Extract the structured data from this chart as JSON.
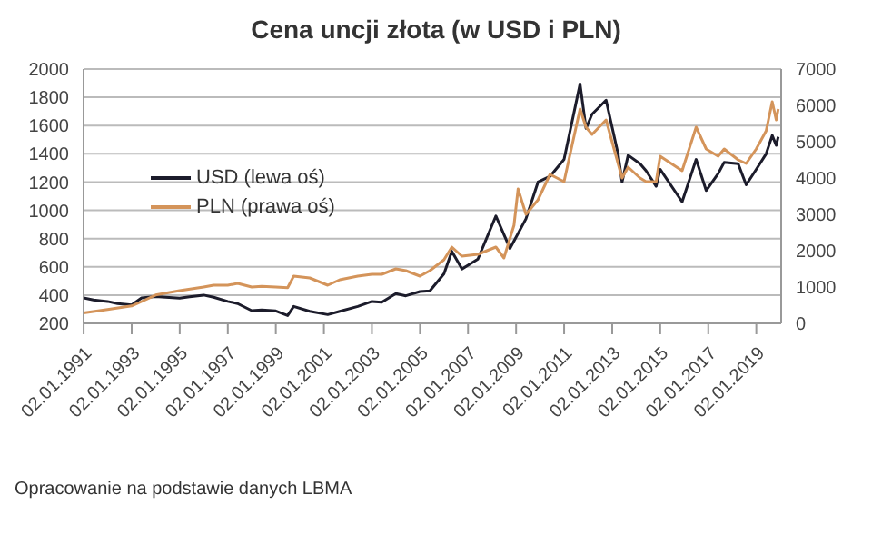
{
  "chart_data": {
    "type": "line",
    "title": "Cena uncji złota (w USD i PLN)",
    "annotations": [
      "Opracowanie na podstawie danych LBMA"
    ],
    "xlim": [
      "1991-01-01",
      "2020-01-15"
    ],
    "xticks": [
      {
        "value": "1991-01-02",
        "label": "02.01.1991"
      },
      {
        "value": "1993-01-02",
        "label": "02.01.1993"
      },
      {
        "value": "1995-01-02",
        "label": "02.01.1995"
      },
      {
        "value": "1997-01-02",
        "label": "02.01.1997"
      },
      {
        "value": "1999-01-02",
        "label": "02.01.1999"
      },
      {
        "value": "2001-01-02",
        "label": "02.01.2001"
      },
      {
        "value": "2003-01-02",
        "label": "02.01.2003"
      },
      {
        "value": "2005-01-02",
        "label": "02.01.2005"
      },
      {
        "value": "2007-01-02",
        "label": "02.01.2007"
      },
      {
        "value": "2009-01-02",
        "label": "02.01.2009"
      },
      {
        "value": "2011-01-02",
        "label": "02.01.2011"
      },
      {
        "value": "2013-01-02",
        "label": "02.01.2013"
      },
      {
        "value": "2015-01-02",
        "label": "02.01.2015"
      },
      {
        "value": "2017-01-02",
        "label": "02.01.2017"
      },
      {
        "value": "2019-01-02",
        "label": "02.01.2019"
      }
    ],
    "ylim": [
      200,
      2000
    ],
    "yticks": [
      200,
      400,
      600,
      800,
      1000,
      1200,
      1400,
      1600,
      1800,
      2000
    ],
    "y2lim": [
      0,
      7000
    ],
    "y2ticks": [
      0,
      1000,
      2000,
      3000,
      4000,
      5000,
      6000,
      7000
    ],
    "grid": "y",
    "legend": "top left",
    "marker": "none",
    "series": [
      {
        "name": "USD (lewa oś)",
        "color": "#1c1c2b",
        "x": [
          "1991-01",
          "1991-06",
          "1992-01",
          "1992-06",
          "1993-01",
          "1993-06",
          "1994-01",
          "1994-06",
          "1995-01",
          "1995-06",
          "1996-01",
          "1996-06",
          "1997-01",
          "1997-06",
          "1998-01",
          "1998-06",
          "1999-01",
          "1999-07",
          "1999-10",
          "2000-06",
          "2001-03",
          "2001-09",
          "2002-06",
          "2003-01",
          "2003-06",
          "2004-01",
          "2004-06",
          "2005-01",
          "2005-06",
          "2006-01",
          "2006-05",
          "2006-10",
          "2007-06",
          "2008-03",
          "2008-10",
          "2009-06",
          "2009-12",
          "2010-06",
          "2011-01",
          "2011-09",
          "2011-12",
          "2012-03",
          "2012-10",
          "2013-04",
          "2013-06",
          "2013-09",
          "2014-03",
          "2014-06",
          "2014-11",
          "2015-01",
          "2015-12",
          "2016-07",
          "2016-12",
          "2017-06",
          "2017-09",
          "2018-04",
          "2018-08",
          "2019-01",
          "2019-06",
          "2019-09",
          "2019-11",
          "2019-12"
        ],
        "values": [
          380,
          365,
          355,
          340,
          330,
          380,
          390,
          385,
          378,
          388,
          400,
          385,
          355,
          340,
          290,
          295,
          288,
          255,
          320,
          285,
          262,
          285,
          320,
          355,
          350,
          410,
          395,
          425,
          430,
          550,
          710,
          585,
          655,
          960,
          730,
          940,
          1200,
          1240,
          1360,
          1895,
          1580,
          1680,
          1780,
          1400,
          1200,
          1390,
          1330,
          1280,
          1170,
          1290,
          1060,
          1360,
          1140,
          1260,
          1340,
          1330,
          1180,
          1290,
          1400,
          1530,
          1460,
          1520
        ]
      },
      {
        "name": "PLN (prawa oś)",
        "color": "#d4945a",
        "axis": "y2",
        "x": [
          "1991-01",
          "1992-01",
          "1993-01",
          "1993-06",
          "1994-01",
          "1995-01",
          "1996-01",
          "1996-06",
          "1997-01",
          "1997-06",
          "1998-01",
          "1998-06",
          "1999-01",
          "1999-07",
          "1999-10",
          "2000-06",
          "2001-03",
          "2001-09",
          "2002-06",
          "2003-01",
          "2003-06",
          "2004-01",
          "2004-06",
          "2005-01",
          "2005-06",
          "2006-01",
          "2006-05",
          "2006-10",
          "2007-06",
          "2008-03",
          "2008-07",
          "2008-12",
          "2009-02",
          "2009-06",
          "2009-12",
          "2010-06",
          "2011-01",
          "2011-09",
          "2011-12",
          "2012-03",
          "2012-10",
          "2013-04",
          "2013-06",
          "2013-09",
          "2014-03",
          "2014-06",
          "2014-11",
          "2015-01",
          "2015-12",
          "2016-07",
          "2016-12",
          "2017-06",
          "2017-09",
          "2018-04",
          "2018-08",
          "2019-01",
          "2019-06",
          "2019-09",
          "2019-11",
          "2019-12"
        ],
        "values": [
          290,
          380,
          480,
          600,
          780,
          900,
          1000,
          1050,
          1050,
          1100,
          1000,
          1020,
          1000,
          980,
          1300,
          1250,
          1050,
          1200,
          1300,
          1350,
          1350,
          1500,
          1450,
          1300,
          1450,
          1750,
          2100,
          1850,
          1900,
          2100,
          1800,
          2700,
          3700,
          3000,
          3400,
          4100,
          3900,
          5900,
          5400,
          5200,
          5600,
          4400,
          4000,
          4300,
          4000,
          3900,
          3900,
          4600,
          4200,
          5400,
          4800,
          4600,
          4800,
          4500,
          4400,
          4800,
          5300,
          6100,
          5600,
          5900
        ]
      }
    ]
  }
}
